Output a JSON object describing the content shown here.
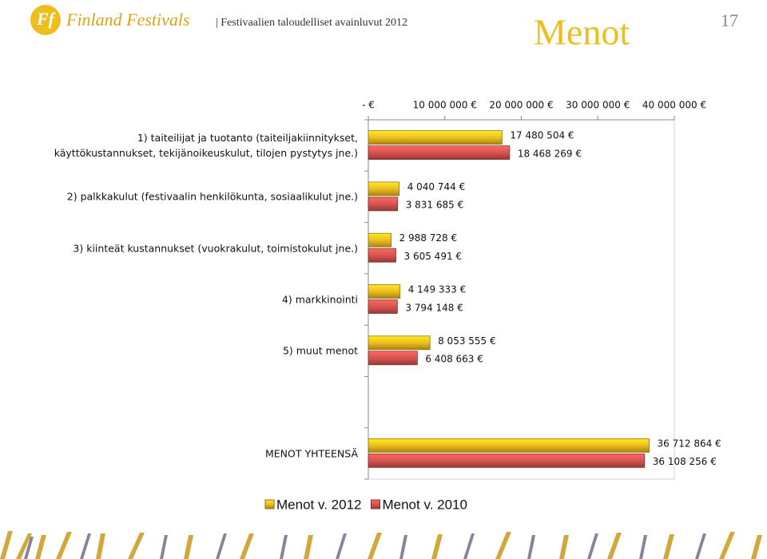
{
  "header": {
    "logo_mark": "Ff",
    "brand": "Finland Festivals",
    "subtitle": "| Festivaalien taloudelliset avainluvut 2012",
    "title": "Menot",
    "page_number": "17"
  },
  "chart_data": {
    "type": "hbar",
    "categories": [
      "1) taiteilijat ja tuotanto (taiteiljakiinnitykset, käyttökustannukset, tekijänoikeuskulut, tilojen pystytys jne.)",
      "2) palkkakulut (festivaalin henkilökunta, sosiaalikulut jne.)",
      "3) kiinteät kustannukset (vuokrakulut, toimistokulut jne.)",
      "4) markkinointi",
      "5) muut menot",
      null,
      "MENOT YHTEENSÄ"
    ],
    "series": [
      {
        "name": "Menot v. 2012",
        "color": "#eebd1e",
        "values": [
          17480504,
          4040744,
          2988728,
          4149333,
          8053555,
          null,
          36712864
        ],
        "value_labels": [
          "17 480 504 €",
          "4 040 744 €",
          "2 988 728 €",
          "4 149 333 €",
          "8 053 555 €",
          null,
          "36 712 864 €"
        ]
      },
      {
        "name": "Menot v. 2010",
        "color": "#d9534f",
        "values": [
          18468269,
          3831685,
          3605491,
          3794148,
          6408663,
          null,
          36108256
        ],
        "value_labels": [
          "18 468 269 €",
          "3 831 685 €",
          "3 605 491 €",
          "3 794 148 €",
          "6 408 663 €",
          null,
          "36 108 256 €"
        ]
      }
    ],
    "xlim": [
      0,
      40000000
    ],
    "xticks": [
      {
        "value": 0,
        "label": "-   €"
      },
      {
        "value": 10000000,
        "label": "10 000 000 €"
      },
      {
        "value": 20000000,
        "label": "20 000 000 €"
      },
      {
        "value": 30000000,
        "label": "30 000 000 €"
      },
      {
        "value": 40000000,
        "label": "40 000 000 €"
      }
    ],
    "legend": "bottom"
  }
}
